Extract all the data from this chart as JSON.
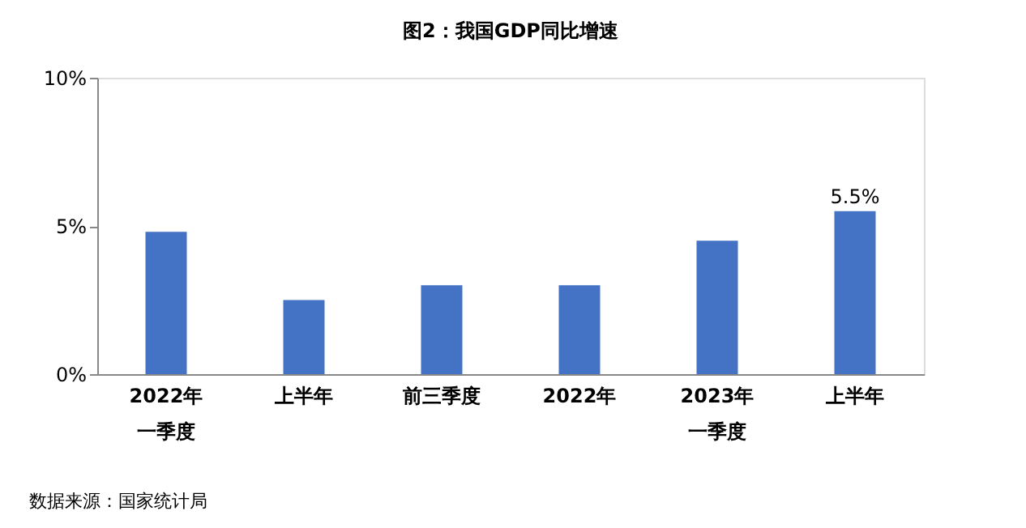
{
  "chart_data": {
    "type": "bar",
    "title": "图2：我国GDP同比增速",
    "categories": [
      "2022年一季度",
      "上半年",
      "前三季度",
      "2022年",
      "2023年一季度",
      "上半年"
    ],
    "values": [
      4.8,
      2.5,
      3.0,
      3.0,
      4.5,
      5.5
    ],
    "value_labels": [
      null,
      null,
      null,
      null,
      null,
      "5.5%"
    ],
    "color": "#4472c4",
    "ylim": [
      0,
      10
    ],
    "yticks": [
      {
        "value": 0,
        "label": "0%"
      },
      {
        "value": 5,
        "label": "5%"
      },
      {
        "value": 10,
        "label": "10%"
      }
    ],
    "grid": false,
    "annotations": [
      "数据来源：国家统计局"
    ]
  }
}
